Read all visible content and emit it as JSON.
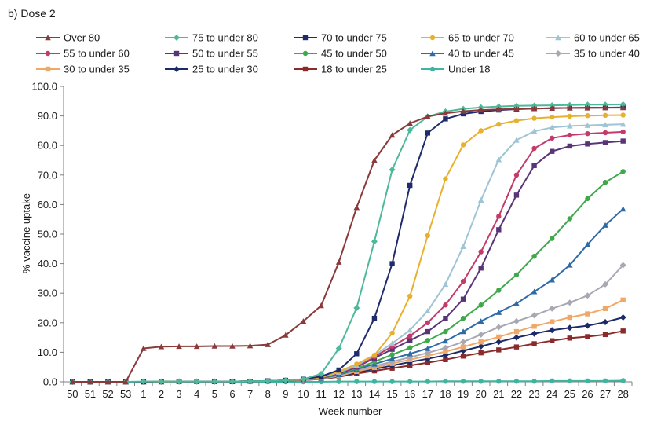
{
  "chart_data": {
    "type": "line",
    "title": "b) Dose 2",
    "xlabel": "Week number",
    "ylabel": "% vaccine uptake",
    "ylim": [
      0,
      100
    ],
    "yticks": [
      "0.0",
      "10.0",
      "20.0",
      "30.0",
      "40.0",
      "50.0",
      "60.0",
      "70.0",
      "80.0",
      "90.0",
      "100.0"
    ],
    "categories": [
      "50",
      "51",
      "52",
      "53",
      "1",
      "2",
      "3",
      "4",
      "5",
      "6",
      "7",
      "8",
      "9",
      "10",
      "11",
      "12",
      "13",
      "14",
      "15",
      "16",
      "17",
      "18",
      "19",
      "20",
      "21",
      "22",
      "23",
      "24",
      "25",
      "26",
      "27",
      "28"
    ],
    "grid": false,
    "legend_position": "top",
    "series": [
      {
        "name": "Over 80",
        "color": "#8b3a3a",
        "marker": "triangle",
        "values": [
          0.0,
          0.0,
          0.0,
          0.0,
          11.3,
          11.9,
          12.0,
          12.0,
          12.1,
          12.1,
          12.2,
          12.6,
          15.8,
          20.5,
          25.8,
          40.5,
          59.0,
          75.0,
          83.5,
          87.5,
          89.8,
          90.9,
          91.6,
          92.0,
          92.2,
          92.4,
          92.5,
          92.6,
          92.7,
          92.7,
          92.8,
          92.8
        ]
      },
      {
        "name": "75 to under 80",
        "color": "#4eb89a",
        "marker": "diamond",
        "values": [
          0.0,
          0.0,
          0.0,
          0.0,
          0.1,
          0.1,
          0.1,
          0.1,
          0.1,
          0.1,
          0.2,
          0.3,
          0.5,
          0.9,
          2.7,
          11.3,
          25.0,
          47.5,
          71.8,
          85.2,
          89.8,
          91.5,
          92.4,
          92.9,
          93.2,
          93.4,
          93.5,
          93.6,
          93.7,
          93.8,
          93.8,
          93.9
        ]
      },
      {
        "name": "70 to under 75",
        "color": "#1f2b6b",
        "marker": "square",
        "values": [
          0.0,
          0.0,
          0.0,
          0.0,
          0.0,
          0.1,
          0.1,
          0.1,
          0.1,
          0.1,
          0.2,
          0.3,
          0.5,
          0.9,
          1.8,
          4.0,
          9.5,
          21.5,
          40.0,
          66.5,
          84.2,
          89.0,
          90.7,
          91.5,
          92.0,
          92.3,
          92.5,
          92.6,
          92.7,
          92.8,
          92.8,
          92.9
        ]
      },
      {
        "name": "65 to under 70",
        "color": "#e8b030",
        "marker": "circle",
        "values": [
          0.0,
          0.0,
          0.0,
          0.0,
          0.0,
          0.0,
          0.1,
          0.1,
          0.1,
          0.1,
          0.2,
          0.3,
          0.5,
          0.8,
          1.5,
          3.5,
          6.0,
          9.0,
          16.5,
          29.0,
          49.5,
          68.7,
          80.2,
          85.0,
          87.2,
          88.4,
          89.2,
          89.6,
          89.9,
          90.1,
          90.2,
          90.3
        ]
      },
      {
        "name": "60 to under 65",
        "color": "#9ec4d6",
        "marker": "triangle",
        "values": [
          0.0,
          0.0,
          0.0,
          0.0,
          0.0,
          0.0,
          0.1,
          0.1,
          0.1,
          0.1,
          0.2,
          0.3,
          0.5,
          0.8,
          1.5,
          3.2,
          5.5,
          9.0,
          13.0,
          17.5,
          24.0,
          33.0,
          45.8,
          61.5,
          75.2,
          81.8,
          84.8,
          86.1,
          86.6,
          86.8,
          87.0,
          87.2
        ]
      },
      {
        "name": "55 to under 60",
        "color": "#c43a6a",
        "marker": "circle",
        "values": [
          0.0,
          0.0,
          0.0,
          0.0,
          0.0,
          0.0,
          0.1,
          0.1,
          0.1,
          0.1,
          0.2,
          0.3,
          0.5,
          0.8,
          1.5,
          3.0,
          5.2,
          8.5,
          12.0,
          15.5,
          20.0,
          26.0,
          34.0,
          44.0,
          56.0,
          70.0,
          79.0,
          82.5,
          83.5,
          84.0,
          84.3,
          84.6
        ]
      },
      {
        "name": "50 to under 55",
        "color": "#5a3478",
        "marker": "square",
        "values": [
          0.0,
          0.0,
          0.0,
          0.0,
          0.0,
          0.0,
          0.1,
          0.1,
          0.1,
          0.1,
          0.2,
          0.3,
          0.5,
          0.8,
          1.4,
          2.8,
          5.0,
          8.0,
          11.0,
          14.0,
          17.0,
          21.5,
          28.0,
          38.5,
          51.5,
          63.2,
          73.2,
          78.0,
          79.8,
          80.5,
          81.0,
          81.5
        ]
      },
      {
        "name": "45 to under 50",
        "color": "#3ea84a",
        "marker": "circle",
        "values": [
          0.0,
          0.0,
          0.0,
          0.0,
          0.0,
          0.0,
          0.1,
          0.1,
          0.1,
          0.1,
          0.2,
          0.3,
          0.5,
          0.8,
          1.3,
          2.6,
          4.5,
          6.8,
          9.2,
          11.5,
          14.0,
          17.0,
          21.5,
          26.0,
          31.0,
          36.2,
          42.5,
          48.5,
          55.2,
          62.0,
          67.5,
          71.2
        ]
      },
      {
        "name": "40 to under 45",
        "color": "#2e6aa8",
        "marker": "triangle",
        "values": [
          0.0,
          0.0,
          0.0,
          0.0,
          0.0,
          0.0,
          0.1,
          0.1,
          0.1,
          0.1,
          0.2,
          0.3,
          0.5,
          0.8,
          1.2,
          2.4,
          4.2,
          6.0,
          7.8,
          9.5,
          11.3,
          13.8,
          17.0,
          20.5,
          23.5,
          26.5,
          30.5,
          34.5,
          39.5,
          46.5,
          53.0,
          58.5
        ]
      },
      {
        "name": "35 to under 40",
        "color": "#a8a8b4",
        "marker": "diamond",
        "values": [
          0.0,
          0.0,
          0.0,
          0.0,
          0.0,
          0.0,
          0.1,
          0.1,
          0.1,
          0.1,
          0.2,
          0.3,
          0.5,
          0.7,
          1.1,
          2.2,
          3.8,
          5.3,
          6.8,
          8.3,
          9.8,
          11.5,
          13.5,
          16.0,
          18.5,
          20.5,
          22.5,
          24.8,
          26.8,
          29.2,
          33.0,
          39.5
        ]
      },
      {
        "name": "30 to under 35",
        "color": "#f0a868",
        "marker": "square",
        "values": [
          0.0,
          0.0,
          0.0,
          0.0,
          0.0,
          0.0,
          0.1,
          0.1,
          0.1,
          0.1,
          0.2,
          0.3,
          0.4,
          0.7,
          1.0,
          2.0,
          3.5,
          4.8,
          6.2,
          7.5,
          8.8,
          10.2,
          11.8,
          13.5,
          15.2,
          17.0,
          18.8,
          20.3,
          21.8,
          23.0,
          24.8,
          27.7
        ]
      },
      {
        "name": "25 to under 30",
        "color": "#1c2a68",
        "marker": "diamond",
        "values": [
          0.0,
          0.0,
          0.0,
          0.0,
          0.0,
          0.0,
          0.1,
          0.1,
          0.1,
          0.1,
          0.2,
          0.3,
          0.4,
          0.6,
          1.0,
          1.9,
          3.2,
          4.3,
          5.5,
          6.7,
          7.8,
          9.0,
          10.5,
          12.0,
          13.5,
          15.0,
          16.3,
          17.5,
          18.3,
          19.0,
          20.2,
          21.8
        ]
      },
      {
        "name": "18 to under 25",
        "color": "#8a2a2a",
        "marker": "square",
        "values": [
          0.0,
          0.0,
          0.0,
          0.0,
          0.0,
          0.0,
          0.1,
          0.1,
          0.1,
          0.1,
          0.2,
          0.3,
          0.4,
          0.6,
          0.9,
          1.7,
          2.8,
          3.7,
          4.6,
          5.5,
          6.5,
          7.5,
          8.7,
          9.8,
          10.8,
          11.8,
          12.9,
          13.9,
          14.8,
          15.3,
          16.0,
          17.2
        ]
      },
      {
        "name": "Under 18",
        "color": "#3fb5a0",
        "marker": "circle",
        "values": [
          0.0,
          0.0,
          0.0,
          0.0,
          0.0,
          0.0,
          0.0,
          0.0,
          0.0,
          0.0,
          0.0,
          0.0,
          0.0,
          0.0,
          0.0,
          0.1,
          0.1,
          0.1,
          0.1,
          0.1,
          0.1,
          0.2,
          0.2,
          0.2,
          0.2,
          0.2,
          0.2,
          0.3,
          0.3,
          0.3,
          0.3,
          0.4
        ]
      }
    ]
  }
}
